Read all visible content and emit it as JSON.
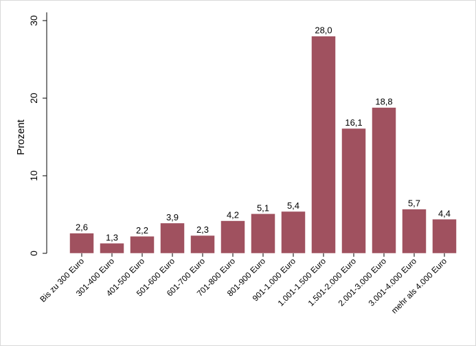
{
  "chart_data": {
    "type": "bar",
    "title": "",
    "xlabel": "",
    "ylabel": "Prozent",
    "ylim": [
      0,
      30
    ],
    "yticks": [
      0,
      10,
      20,
      30
    ],
    "grid": false,
    "bar_color": "#A0515F",
    "categories": [
      "Bis zu 300 Euro",
      "301-400 Euro",
      "401-500 Euro",
      "501-600 Euro",
      "601-700 Euro",
      "701-800 Euro",
      "801-900 Euro",
      "901-1.000 Euro",
      "1.001-1.500 Euro",
      "1.501-2.000 Euro",
      "2.001-3.000 Euro",
      "3.001-4.000 Euro",
      "mehr als 4.000 Euro"
    ],
    "values": [
      2.6,
      1.3,
      2.2,
      3.9,
      2.3,
      4.2,
      5.1,
      5.4,
      28.0,
      16.1,
      18.8,
      5.7,
      4.4
    ],
    "value_labels": [
      "2,6",
      "1,3",
      "2,2",
      "3,9",
      "2,3",
      "4,2",
      "5,1",
      "5,4",
      "28,0",
      "16,1",
      "18,8",
      "5,7",
      "4,4"
    ]
  }
}
